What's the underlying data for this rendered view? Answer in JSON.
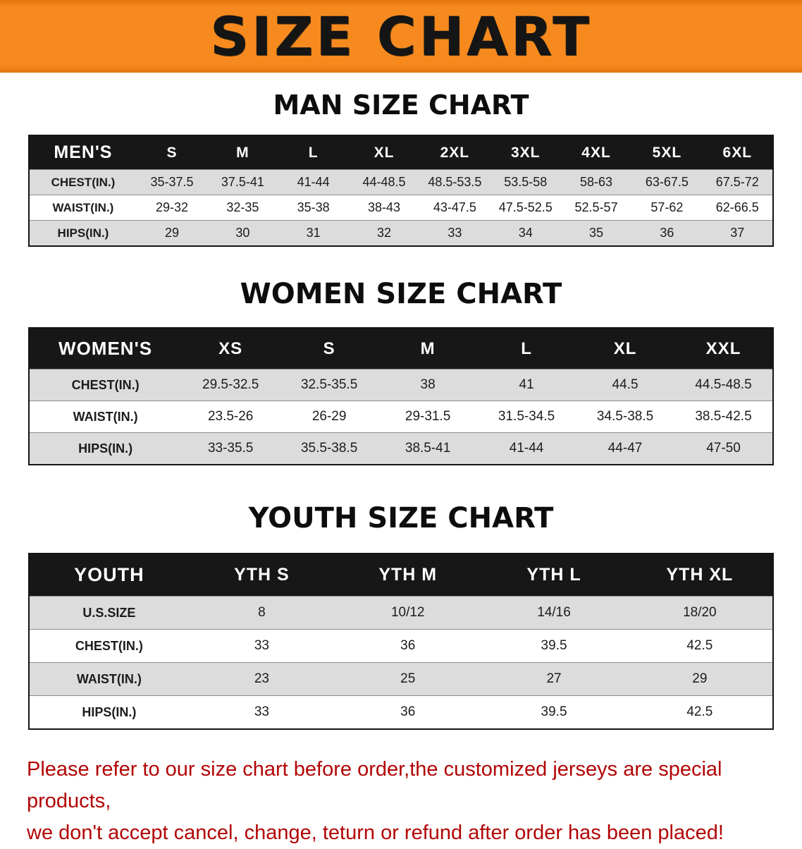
{
  "banner": {
    "title": "SIZE CHART",
    "bg_color": "#f68a1f",
    "text_color": "#151515"
  },
  "sections": [
    {
      "heading": "MAN SIZE CHART",
      "table": {
        "header": [
          "MEN'S",
          "S",
          "M",
          "L",
          "XL",
          "2XL",
          "3XL",
          "4XL",
          "5XL",
          "6XL"
        ],
        "rows": [
          [
            "CHEST(IN.)",
            "35-37.5",
            "37.5-41",
            "41-44",
            "44-48.5",
            "48.5-53.5",
            "53.5-58",
            "58-63",
            "63-67.5",
            "67.5-72"
          ],
          [
            "WAIST(IN.)",
            "29-32",
            "32-35",
            "35-38",
            "38-43",
            "43-47.5",
            "47.5-52.5",
            "52.5-57",
            "57-62",
            "62-66.5"
          ],
          [
            "HIPS(IN.)",
            "29",
            "30",
            "31",
            "32",
            "33",
            "34",
            "35",
            "36",
            "37"
          ]
        ]
      }
    },
    {
      "heading": "WOMEN SIZE CHART",
      "table": {
        "header": [
          "WOMEN'S",
          "XS",
          "S",
          "M",
          "L",
          "XL",
          "XXL"
        ],
        "rows": [
          [
            "CHEST(IN.)",
            "29.5-32.5",
            "32.5-35.5",
            "38",
            "41",
            "44.5",
            "44.5-48.5"
          ],
          [
            "WAIST(IN.)",
            "23.5-26",
            "26-29",
            "29-31.5",
            "31.5-34.5",
            "34.5-38.5",
            "38.5-42.5"
          ],
          [
            "HIPS(IN.)",
            "33-35.5",
            "35.5-38.5",
            "38.5-41",
            "41-44",
            "44-47",
            "47-50"
          ]
        ]
      }
    },
    {
      "heading": "YOUTH SIZE CHART",
      "table": {
        "header": [
          "YOUTH",
          "YTH S",
          "YTH M",
          "YTH L",
          "YTH XL"
        ],
        "rows": [
          [
            "U.S.SIZE",
            "8",
            "10/12",
            "14/16",
            "18/20"
          ],
          [
            "CHEST(IN.)",
            "33",
            "36",
            "39.5",
            "42.5"
          ],
          [
            "WAIST(IN.)",
            "23",
            "25",
            "27",
            "29"
          ],
          [
            "HIPS(IN.)",
            "33",
            "36",
            "39.5",
            "42.5"
          ]
        ]
      }
    }
  ],
  "footer": {
    "lines": [
      "Please refer to our size chart before order,the customized jerseys are special products,",
      "we don't accept cancel, change, teturn or refund after order has been placed!"
    ],
    "text_color": "#b30505"
  },
  "chart_data": {
    "type": "table",
    "tables": [
      {
        "title": "MAN SIZE CHART",
        "columns": [
          "MEN'S",
          "S",
          "M",
          "L",
          "XL",
          "2XL",
          "3XL",
          "4XL",
          "5XL",
          "6XL"
        ],
        "rows": [
          [
            "CHEST(IN.)",
            "35-37.5",
            "37.5-41",
            "41-44",
            "44-48.5",
            "48.5-53.5",
            "53.5-58",
            "58-63",
            "63-67.5",
            "67.5-72"
          ],
          [
            "WAIST(IN.)",
            "29-32",
            "32-35",
            "35-38",
            "38-43",
            "43-47.5",
            "47.5-52.5",
            "52.5-57",
            "57-62",
            "62-66.5"
          ],
          [
            "HIPS(IN.)",
            "29",
            "30",
            "31",
            "32",
            "33",
            "34",
            "35",
            "36",
            "37"
          ]
        ]
      },
      {
        "title": "WOMEN SIZE CHART",
        "columns": [
          "WOMEN'S",
          "XS",
          "S",
          "M",
          "L",
          "XL",
          "XXL"
        ],
        "rows": [
          [
            "CHEST(IN.)",
            "29.5-32.5",
            "32.5-35.5",
            "38",
            "41",
            "44.5",
            "44.5-48.5"
          ],
          [
            "WAIST(IN.)",
            "23.5-26",
            "26-29",
            "29-31.5",
            "31.5-34.5",
            "34.5-38.5",
            "38.5-42.5"
          ],
          [
            "HIPS(IN.)",
            "33-35.5",
            "35.5-38.5",
            "38.5-41",
            "41-44",
            "44-47",
            "47-50"
          ]
        ]
      },
      {
        "title": "YOUTH SIZE CHART",
        "columns": [
          "YOUTH",
          "YTH S",
          "YTH M",
          "YTH L",
          "YTH XL"
        ],
        "rows": [
          [
            "U.S.SIZE",
            "8",
            "10/12",
            "14/16",
            "18/20"
          ],
          [
            "CHEST(IN.)",
            "33",
            "36",
            "39.5",
            "42.5"
          ],
          [
            "WAIST(IN.)",
            "23",
            "25",
            "27",
            "29"
          ],
          [
            "HIPS(IN.)",
            "33",
            "36",
            "39.5",
            "42.5"
          ]
        ]
      }
    ]
  }
}
